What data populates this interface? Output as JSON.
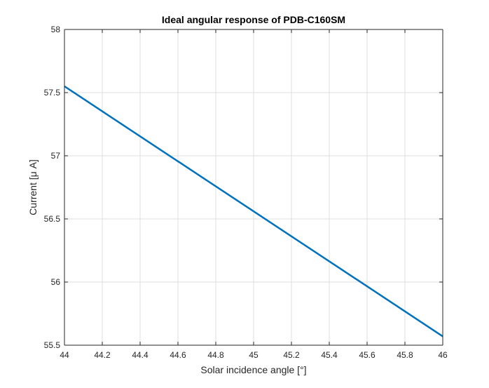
{
  "chart_data": {
    "type": "line",
    "title": "Ideal angular response of PDB-C160SM",
    "xlabel": "Solar incidence angle [°]",
    "ylabel": "Current [μ A]",
    "xlim": [
      44,
      46
    ],
    "ylim": [
      55.5,
      58
    ],
    "xticks": [
      "44",
      "44.2",
      "44.4",
      "44.6",
      "44.8",
      "45",
      "45.2",
      "45.4",
      "45.6",
      "45.8",
      "46"
    ],
    "yticks": [
      "55.5",
      "56",
      "56.5",
      "57",
      "57.5",
      "58"
    ],
    "grid": true,
    "series": [
      {
        "color": "#0072bd",
        "x": [
          44,
          46
        ],
        "y": [
          57.55,
          55.57
        ]
      }
    ]
  }
}
